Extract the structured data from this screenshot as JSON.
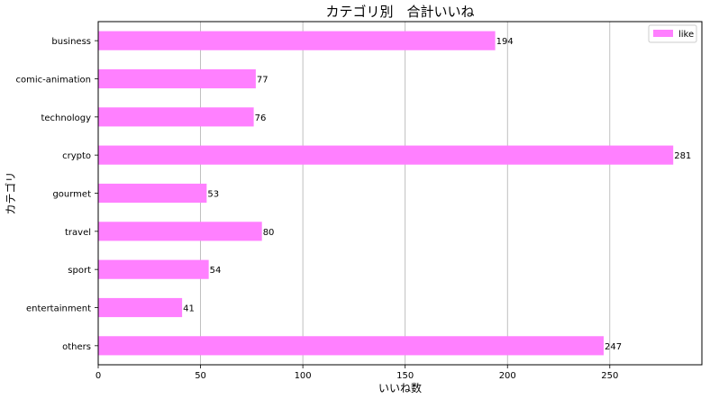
{
  "chart_data": {
    "type": "bar",
    "orientation": "horizontal",
    "title": "カテゴリ別　合計いいね",
    "xlabel": "いいね数",
    "ylabel": "カテゴリ",
    "categories": [
      "business",
      "comic-animation",
      "technology",
      "crypto",
      "gourmet",
      "travel",
      "sport",
      "entertainment",
      "others"
    ],
    "series": [
      {
        "name": "like",
        "values": [
          194,
          77,
          76,
          281,
          53,
          80,
          54,
          41,
          247
        ],
        "color": "#ff80ff"
      }
    ],
    "xlim": [
      0,
      295
    ],
    "xticks": [
      0,
      50,
      100,
      150,
      200,
      250
    ],
    "grid": "vertical",
    "legend": "top-right",
    "data_labels": true
  }
}
